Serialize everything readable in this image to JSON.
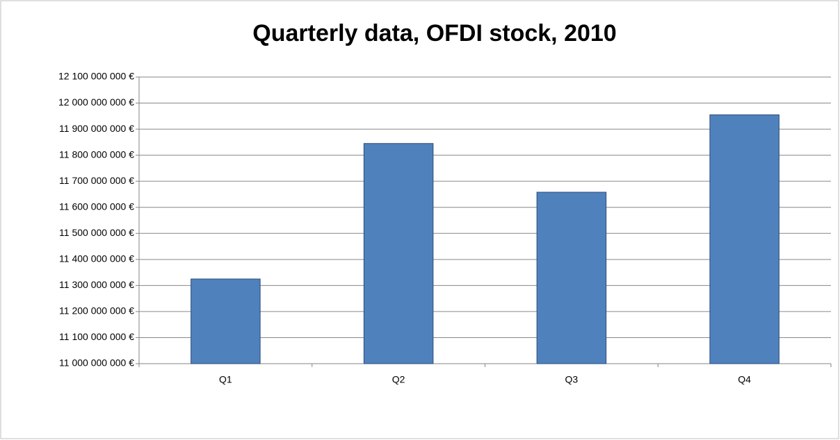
{
  "chart_data": {
    "type": "bar",
    "title": "Quarterly data, OFDI stock, 2010",
    "categories": [
      "Q1",
      "Q2",
      "Q3",
      "Q4"
    ],
    "values": [
      11325000000,
      11845000000,
      11658000000,
      11955000000
    ],
    "color": "#4f81bd",
    "ylim": [
      11000000000,
      12100000000
    ],
    "yticks": [
      {
        "value": 11000000000,
        "label": "11 000 000 000 €"
      },
      {
        "value": 11100000000,
        "label": "11 100 000 000 €"
      },
      {
        "value": 11200000000,
        "label": "11 200 000 000 €"
      },
      {
        "value": 11300000000,
        "label": "11 300 000 000 €"
      },
      {
        "value": 11400000000,
        "label": "11 400 000 000 €"
      },
      {
        "value": 11500000000,
        "label": "11 500 000 000 €"
      },
      {
        "value": 11600000000,
        "label": "11 600 000 000 €"
      },
      {
        "value": 11700000000,
        "label": "11 700 000 000 €"
      },
      {
        "value": 11800000000,
        "label": "11 800 000 000 €"
      },
      {
        "value": 11900000000,
        "label": "11 900 000 000 €"
      },
      {
        "value": 12000000000,
        "label": "12 000 000 000 €"
      },
      {
        "value": 12100000000,
        "label": "12 100 000 000 €"
      }
    ],
    "grid": true
  }
}
